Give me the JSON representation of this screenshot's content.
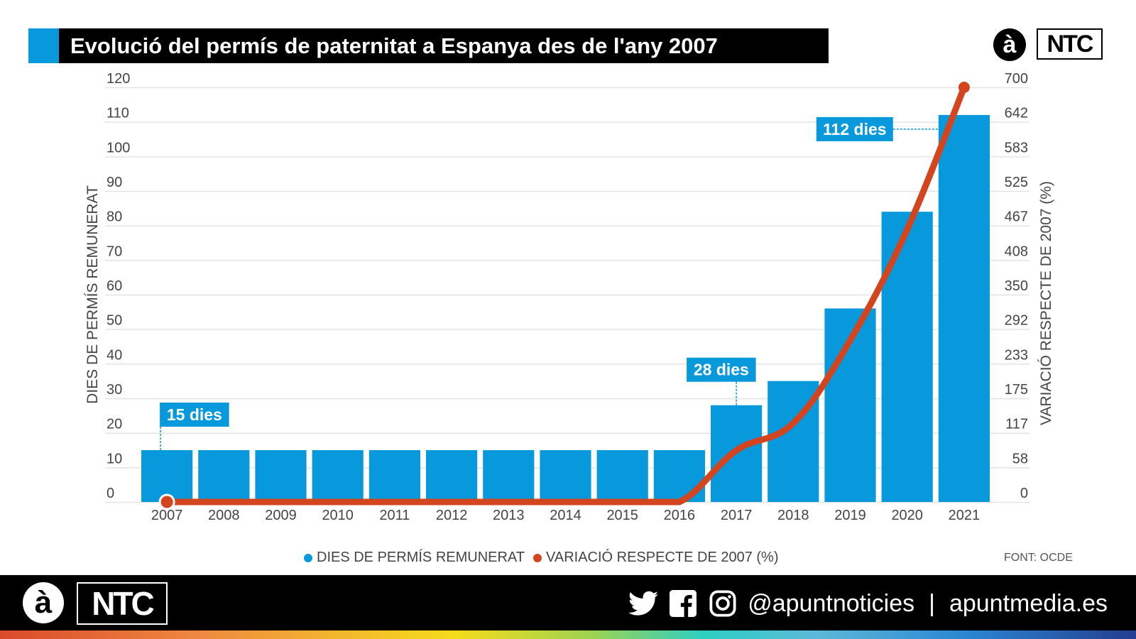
{
  "header": {
    "title": "Evolució del permís de paternitat a Espanya des de l'any 2007",
    "logo_letter": "à",
    "logo_brand": "NTC"
  },
  "colors": {
    "bar": "#0899dc",
    "line": "#d2451e",
    "title_accent": "#0899dc",
    "grid": "#e3e3e3",
    "tick_text": "#444444"
  },
  "chart_data": {
    "type": "bar+line",
    "title": "Evolució del permís de paternitat a Espanya des de l'any 2007",
    "categories": [
      "2007",
      "2008",
      "2009",
      "2010",
      "2011",
      "2012",
      "2013",
      "2014",
      "2015",
      "2016",
      "2017",
      "2018",
      "2019",
      "2020",
      "2021"
    ],
    "series": [
      {
        "name": "DIES DE PERMÍS REMUNERAT",
        "type": "bar",
        "axis": "left",
        "values": [
          15,
          15,
          15,
          15,
          15,
          15,
          15,
          15,
          15,
          15,
          28,
          35,
          56,
          84,
          112
        ]
      },
      {
        "name": "VARIACIÓ RESPECTE DE 2007 (%)",
        "type": "line",
        "axis": "right",
        "values": [
          0,
          0,
          0,
          0,
          0,
          0,
          0,
          0,
          0,
          0,
          87,
          133,
          273,
          460,
          700
        ]
      }
    ],
    "left_axis": {
      "label": "DIES DE PERMÍS REMUNERAT",
      "range": [
        0,
        120
      ],
      "ticks": [
        "0",
        "10",
        "20",
        "30",
        "40",
        "50",
        "60",
        "70",
        "80",
        "90",
        "100",
        "110",
        "120"
      ]
    },
    "right_axis": {
      "label": "VARIACIÓ RESPECTE DE 2007 (%)",
      "range": [
        0,
        700
      ],
      "ticks": [
        "0",
        "58",
        "117",
        "175",
        "233",
        "292",
        "350",
        "408",
        "467",
        "525",
        "583",
        "642",
        "700"
      ]
    },
    "annotations": [
      {
        "category": "2007",
        "text": "15 dies"
      },
      {
        "category": "2017",
        "text": "28 dies"
      },
      {
        "category": "2021",
        "text": "112 dies"
      }
    ],
    "grid": true,
    "legend_position": "bottom-center"
  },
  "legend": {
    "bars": "DIES DE PERMÍS REMUNERAT",
    "line": "VARIACIÓ RESPECTE DE 2007 (%)"
  },
  "source": "FONT: OCDE",
  "footer": {
    "logo_letter": "à",
    "logo_brand": "NTC",
    "icons": [
      "twitter-icon",
      "facebook-icon",
      "instagram-icon"
    ],
    "handle": "@apuntnoticies",
    "separator": "|",
    "website": "apuntmedia.es"
  }
}
